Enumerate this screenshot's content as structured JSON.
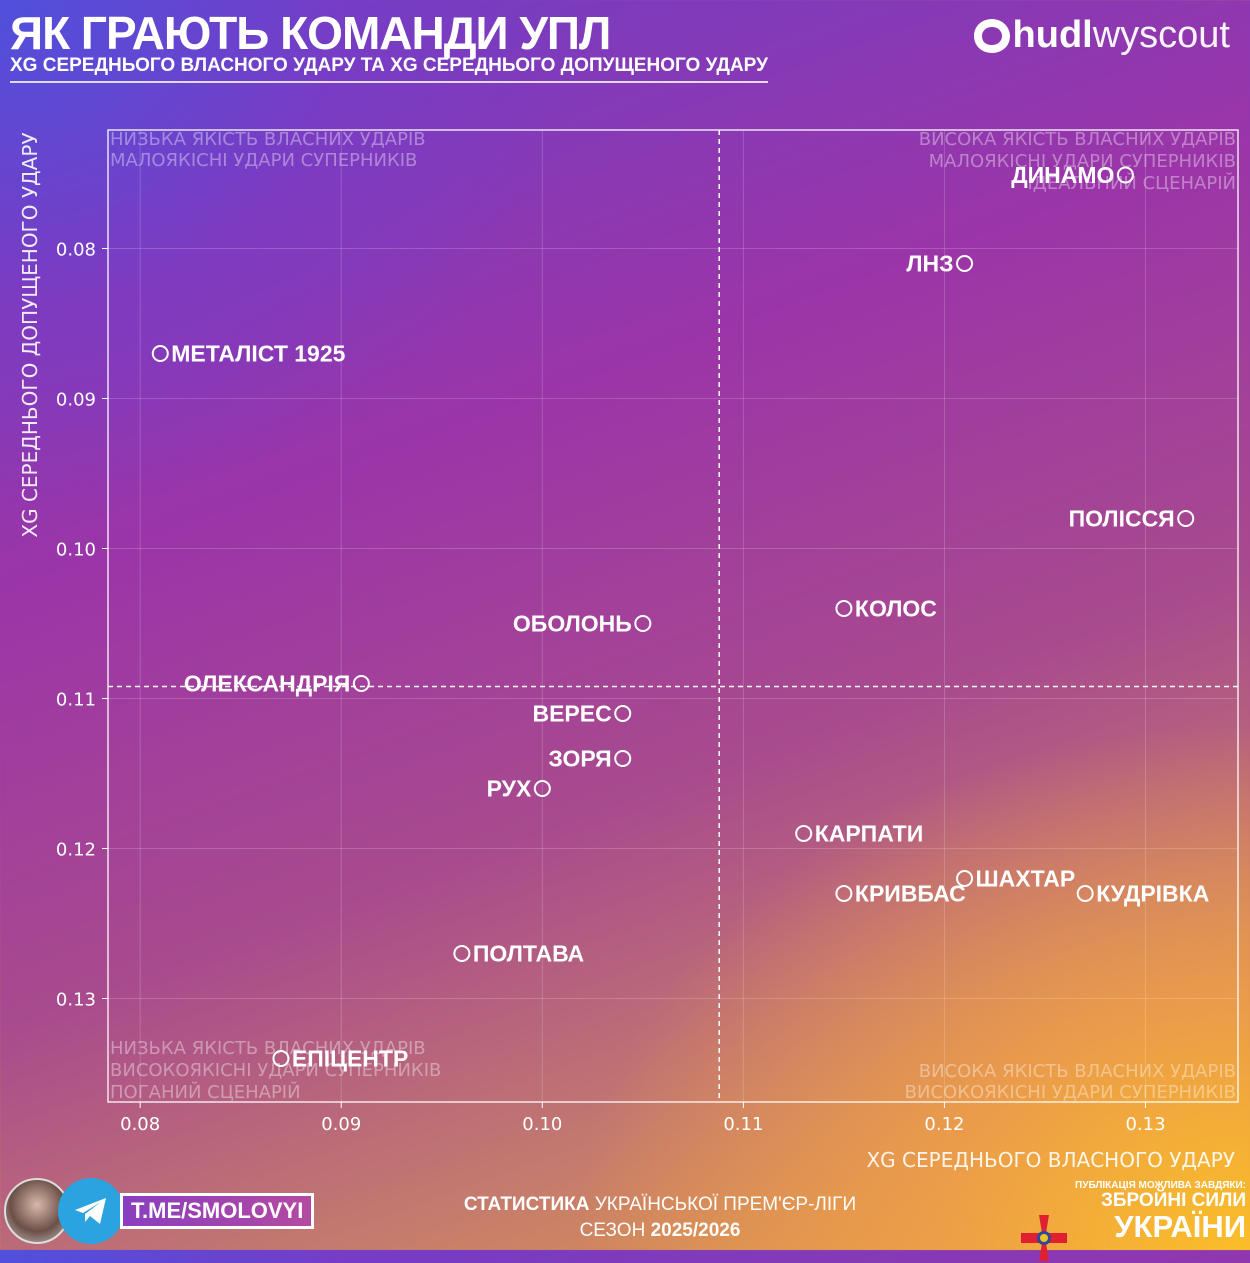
{
  "header": {
    "title": "ЯК ГРАЮТЬ КОМАНДИ УПЛ",
    "subtitle": "XG СЕРЕДНЬОГО ВЛАСНОГО УДАРУ ТА XG СЕРЕДНЬОГО ДОПУЩЕНОГО УДАРУ"
  },
  "logo": {
    "bold": "hudl",
    "light": "wyscout"
  },
  "chart_data": {
    "type": "scatter",
    "xlabel": "XG СЕРЕДНЬОГО ВЛАСНОГО УДАРУ",
    "ylabel": "XG СЕРЕДНЬОГО ДОПУЩЕНОГО УДАРУ",
    "xlim": [
      0.0784,
      0.1346
    ],
    "ylim": [
      0.0721,
      0.1369
    ],
    "y_inverted": true,
    "grid": true,
    "x_ticks": [
      {
        "v": 0.08,
        "label": "0.08"
      },
      {
        "v": 0.09,
        "label": "0.09"
      },
      {
        "v": 0.1,
        "label": "0.10"
      },
      {
        "v": 0.11,
        "label": "0.11"
      },
      {
        "v": 0.12,
        "label": "0.12"
      },
      {
        "v": 0.13,
        "label": "0.13"
      }
    ],
    "y_ticks": [
      {
        "v": 0.08,
        "label": "0.08"
      },
      {
        "v": 0.09,
        "label": "0.09"
      },
      {
        "v": 0.1,
        "label": "0.10"
      },
      {
        "v": 0.11,
        "label": "0.11"
      },
      {
        "v": 0.12,
        "label": "0.12"
      },
      {
        "v": 0.13,
        "label": "0.13"
      }
    ],
    "mean_x": 0.1088,
    "mean_y": 0.1092,
    "points": [
      {
        "team": "ДИНАМО",
        "x": 0.129,
        "y": 0.0751,
        "label_side": "left"
      },
      {
        "team": "ЛНЗ",
        "x": 0.121,
        "y": 0.081,
        "label_side": "left"
      },
      {
        "team": "МЕТАЛІСТ 1925",
        "x": 0.081,
        "y": 0.087,
        "label_side": "right"
      },
      {
        "team": "ПОЛІССЯ",
        "x": 0.132,
        "y": 0.098,
        "label_side": "left"
      },
      {
        "team": "КОЛОС",
        "x": 0.115,
        "y": 0.104,
        "label_side": "right"
      },
      {
        "team": "ОБОЛОНЬ",
        "x": 0.105,
        "y": 0.105,
        "label_side": "left"
      },
      {
        "team": "ОЛЕКСАНДРІЯ",
        "x": 0.091,
        "y": 0.109,
        "label_side": "left"
      },
      {
        "team": "ВЕРЕС",
        "x": 0.104,
        "y": 0.111,
        "label_side": "left"
      },
      {
        "team": "ЗОРЯ",
        "x": 0.104,
        "y": 0.114,
        "label_side": "left"
      },
      {
        "team": "РУХ",
        "x": 0.1,
        "y": 0.116,
        "label_side": "left"
      },
      {
        "team": "КАРПАТИ",
        "x": 0.113,
        "y": 0.119,
        "label_side": "right"
      },
      {
        "team": "ШАХТАР",
        "x": 0.121,
        "y": 0.122,
        "label_side": "right"
      },
      {
        "team": "КРИВБАС",
        "x": 0.115,
        "y": 0.123,
        "label_side": "right"
      },
      {
        "team": "КУДРІВКА",
        "x": 0.127,
        "y": 0.123,
        "label_side": "right"
      },
      {
        "team": "ПОЛТАВА",
        "x": 0.096,
        "y": 0.127,
        "label_side": "right"
      },
      {
        "team": "ЕПІЦЕНТР",
        "x": 0.087,
        "y": 0.134,
        "label_side": "right"
      }
    ],
    "quadrants": {
      "top_left": [
        "НИЗЬКА ЯКІСТЬ ВЛАСНИХ УДАРІВ",
        "МАЛОЯКІСНІ УДАРИ СУПЕРНИКІВ"
      ],
      "top_right": [
        "ВИСОКА ЯКІСТЬ ВЛАСНИХ УДАРІВ",
        "МАЛОЯКІСНІ УДАРИ СУПЕРНИКІВ",
        "ІДЕАЛЬНИЙ СЦЕНАРІЙ"
      ],
      "bottom_left": [
        "НИЗЬКА ЯКІСТЬ ВЛАСНИХ УДАРІВ",
        "ВИСОКОЯКІСНІ УДАРИ СУПЕРНИКІВ",
        "ПОГАНИЙ СЦЕНАРІЙ"
      ],
      "bottom_right": [
        "ВИСОКА ЯКІСТЬ ВЛАСНИХ УДАРІВ",
        "ВИСОКОЯКІСНІ УДАРИ СУПЕРНИКІВ"
      ]
    }
  },
  "footer": {
    "telegram": "T.ME/SMOLOVYI",
    "stats_bold": "СТАТИСТИКА",
    "stats_rest": " УКРАЇНСЬКОЇ ПРЕМ'ЄР-ЛІГИ",
    "season_label": "СЕЗОН ",
    "season_value": "2025/2026",
    "zsu_small": "ПУБЛІКАЦІЯ МОЖЛИВА ЗАВДЯКИ:",
    "zsu_mid": "ЗБРОЙНІ СИЛИ",
    "zsu_large": "УКРАЇНИ"
  }
}
